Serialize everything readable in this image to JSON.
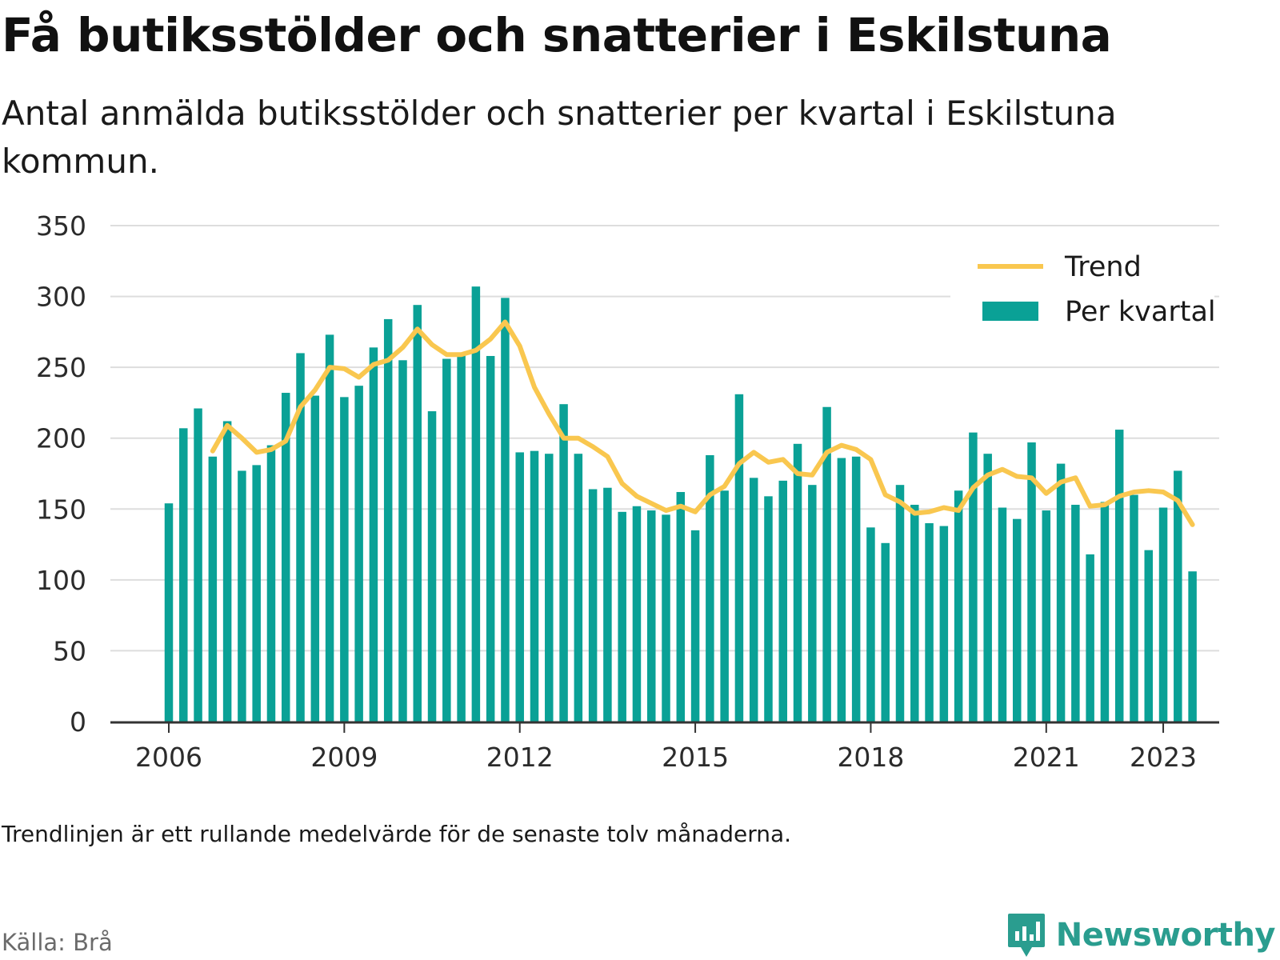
{
  "title": "Få butiksstölder och snatterier i Eskilstuna",
  "subtitle": "Antal anmälda butiksstölder och snatterier per kvartal i Eskilstuna kommun.",
  "footnote": "Trendlinjen är ett rullande medelvärde för de senaste tolv månaderna.",
  "source": "Källa: Brå",
  "brand": {
    "name": "Newsworthy",
    "icon": "newsworthy-logo-icon"
  },
  "colors": {
    "bars": "#0aa196",
    "trend": "#f9c74f",
    "grid": "#dddddd",
    "axis": "#333333"
  },
  "chart_data": {
    "type": "bar",
    "title": "",
    "xlabel": "",
    "ylabel": "",
    "ylim": [
      0,
      350
    ],
    "yticks": [
      0,
      50,
      100,
      150,
      200,
      250,
      300,
      350
    ],
    "xticks": [
      "2006",
      "2009",
      "2012",
      "2015",
      "2018",
      "2021",
      "2023"
    ],
    "grid": true,
    "legend_position": "top-right",
    "categories": [
      "2006 Q1",
      "2006 Q2",
      "2006 Q3",
      "2006 Q4",
      "2007 Q1",
      "2007 Q2",
      "2007 Q3",
      "2007 Q4",
      "2008 Q1",
      "2008 Q2",
      "2008 Q3",
      "2008 Q4",
      "2009 Q1",
      "2009 Q2",
      "2009 Q3",
      "2009 Q4",
      "2010 Q1",
      "2010 Q2",
      "2010 Q3",
      "2010 Q4",
      "2011 Q1",
      "2011 Q2",
      "2011 Q3",
      "2011 Q4",
      "2012 Q1",
      "2012 Q2",
      "2012 Q3",
      "2012 Q4",
      "2013 Q1",
      "2013 Q2",
      "2013 Q3",
      "2013 Q4",
      "2014 Q1",
      "2014 Q2",
      "2014 Q3",
      "2014 Q4",
      "2015 Q1",
      "2015 Q2",
      "2015 Q3",
      "2015 Q4",
      "2016 Q1",
      "2016 Q2",
      "2016 Q3",
      "2016 Q4",
      "2017 Q1",
      "2017 Q2",
      "2017 Q3",
      "2017 Q4",
      "2018 Q1",
      "2018 Q2",
      "2018 Q3",
      "2018 Q4",
      "2019 Q1",
      "2019 Q2",
      "2019 Q3",
      "2019 Q4",
      "2020 Q1",
      "2020 Q2",
      "2020 Q3",
      "2020 Q4",
      "2021 Q1",
      "2021 Q2",
      "2021 Q3",
      "2021 Q4",
      "2022 Q1",
      "2022 Q2",
      "2022 Q3",
      "2022 Q4",
      "2023 Q1",
      "2023 Q2",
      "2023 Q3"
    ],
    "series": [
      {
        "name": "Per kvartal",
        "type": "bar",
        "values": [
          154,
          207,
          221,
          187,
          212,
          177,
          181,
          195,
          232,
          260,
          230,
          273,
          229,
          237,
          264,
          284,
          255,
          294,
          219,
          256,
          259,
          307,
          258,
          299,
          190,
          191,
          189,
          224,
          189,
          164,
          165,
          148,
          152,
          149,
          146,
          162,
          135,
          188,
          163,
          231,
          172,
          159,
          170,
          196,
          167,
          222,
          186,
          187,
          137,
          126,
          167,
          153,
          140,
          138,
          163,
          204,
          189,
          151,
          143,
          197,
          149,
          182,
          153,
          118,
          155,
          206,
          160,
          121,
          151,
          177,
          106
        ]
      },
      {
        "name": "Trend",
        "type": "line",
        "values": [
          null,
          null,
          null,
          191,
          209,
          200,
          190,
          192,
          198,
          222,
          234,
          250,
          249,
          243,
          252,
          255,
          264,
          277,
          266,
          259,
          259,
          262,
          270,
          282,
          265,
          236,
          217,
          200,
          200,
          194,
          187,
          168,
          159,
          154,
          149,
          152,
          148,
          160,
          166,
          182,
          190,
          183,
          185,
          175,
          174,
          190,
          195,
          192,
          185,
          160,
          155,
          147,
          148,
          151,
          149,
          165,
          174,
          178,
          173,
          172,
          161,
          169,
          172,
          152,
          153,
          159,
          162,
          163,
          162,
          156,
          139
        ]
      }
    ]
  }
}
